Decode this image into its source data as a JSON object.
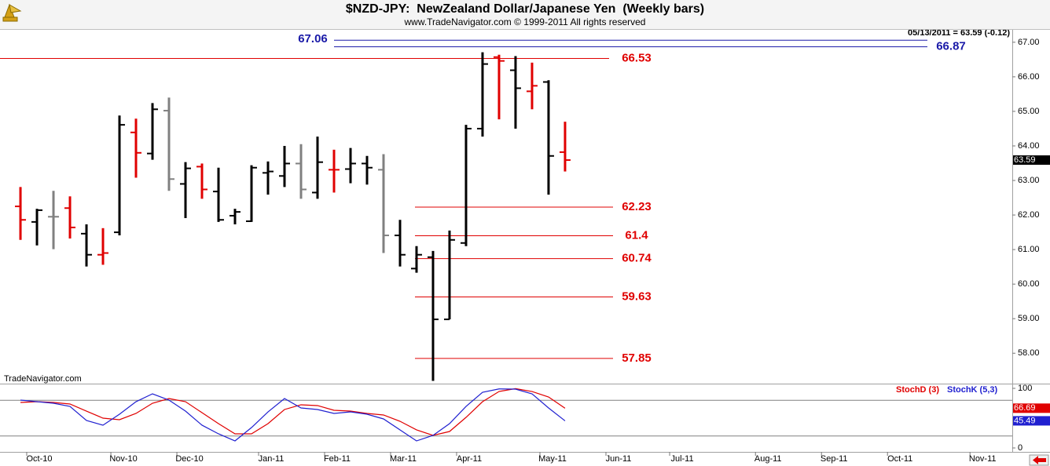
{
  "chart_data": [
    {
      "type": "ohlc",
      "title": "$NZD-JPY:  NewZealand Dollar/Japanese Yen  (Weekly bars)",
      "subtitle": "www.TradeNavigator.com © 1999-2011 All rights reserved",
      "status": "05/13/2011 = 63.59 (-0.12)",
      "watermark": "TradeNavigator.com",
      "open": [
        62.25,
        61.8,
        61.95,
        62.2,
        61.46,
        60.85,
        61.5,
        64.39,
        63.78,
        65.02,
        62.9,
        63.4,
        62.68,
        61.98,
        61.82,
        63.22,
        63.13,
        63.49,
        62.65,
        63.31,
        63.33,
        63.49,
        63.31,
        61.41,
        60.45,
        60.78,
        58.98,
        61.19,
        64.5,
        66.57,
        66.19,
        65.58,
        65.85,
        63.82
      ],
      "high": [
        62.81,
        62.18,
        62.7,
        62.54,
        61.73,
        61.62,
        64.88,
        64.79,
        65.24,
        65.4,
        63.53,
        63.49,
        63.37,
        62.18,
        63.44,
        63.55,
        64.0,
        64.05,
        64.27,
        63.89,
        63.94,
        63.71,
        63.76,
        61.86,
        61.1,
        60.96,
        61.55,
        64.61,
        66.71,
        66.64,
        66.6,
        66.41,
        65.9,
        64.7
      ],
      "low": [
        61.28,
        61.12,
        61.01,
        61.32,
        60.51,
        60.56,
        61.41,
        63.08,
        63.6,
        62.7,
        61.91,
        62.47,
        61.8,
        61.73,
        61.8,
        62.59,
        62.81,
        62.47,
        62.47,
        62.65,
        62.92,
        62.88,
        60.9,
        60.51,
        60.33,
        57.2,
        58.98,
        61.1,
        64.27,
        64.77,
        64.5,
        65.06,
        62.59,
        63.26
      ],
      "close": [
        61.86,
        62.14,
        61.95,
        61.64,
        60.85,
        60.9,
        64.61,
        63.8,
        65.06,
        63.04,
        63.35,
        62.74,
        61.86,
        62.09,
        63.37,
        63.26,
        63.49,
        62.74,
        63.53,
        63.31,
        63.49,
        63.37,
        61.41,
        60.85,
        60.85,
        58.98,
        61.28,
        64.5,
        66.37,
        66.46,
        65.67,
        65.74,
        63.71,
        63.59
      ],
      "colors": [
        "#e00000",
        "#000000",
        "#808080",
        "#e00000",
        "#000000",
        "#e00000",
        "#000000",
        "#e00000",
        "#000000",
        "#808080",
        "#000000",
        "#e00000",
        "#000000",
        "#000000",
        "#000000",
        "#000000",
        "#000000",
        "#808080",
        "#000000",
        "#e00000",
        "#000000",
        "#000000",
        "#808080",
        "#000000",
        "#000000",
        "#000000",
        "#000000",
        "#000000",
        "#000000",
        "#e00000",
        "#000000",
        "#e00000",
        "#000000",
        "#e00000"
      ],
      "xlim": [
        -1.24,
        60.1
      ],
      "xticks": [
        {
          "value": 1.14,
          "label": "Oct-10"
        },
        {
          "value": 6.24,
          "label": "Nov-10"
        },
        {
          "value": 10.24,
          "label": "Dec-10"
        },
        {
          "value": 15.19,
          "label": "Jan-11"
        },
        {
          "value": 19.19,
          "label": "Feb-11"
        },
        {
          "value": 23.19,
          "label": "Mar-11"
        },
        {
          "value": 27.19,
          "label": "Apr-11"
        },
        {
          "value": 32.24,
          "label": "May-11"
        },
        {
          "value": 36.24,
          "label": "Jun-11"
        },
        {
          "value": 40.1,
          "label": "Jul-11"
        },
        {
          "value": 45.3,
          "label": "Aug-11"
        },
        {
          "value": 49.3,
          "label": "Sep-11"
        },
        {
          "value": 53.3,
          "label": "Oct-11"
        },
        {
          "value": 58.3,
          "label": "Nov-11"
        }
      ],
      "ylim": [
        57.12,
        67.36
      ],
      "yticks": [
        {
          "value": 58,
          "label": "58.00"
        },
        {
          "value": 59,
          "label": "59.00"
        },
        {
          "value": 60,
          "label": "60.00"
        },
        {
          "value": 61,
          "label": "61.00"
        },
        {
          "value": 62,
          "label": "62.00"
        },
        {
          "value": 63,
          "label": "63.00"
        },
        {
          "value": 64,
          "label": "64.00"
        },
        {
          "value": 65,
          "label": "65.00"
        },
        {
          "value": 66,
          "label": "66.00"
        },
        {
          "value": 67,
          "label": "67.00"
        }
      ],
      "levels": [
        {
          "value": 67.06,
          "color": "#1a1aa8"
        },
        {
          "value": 66.87,
          "color": "#1a1aa8"
        },
        {
          "value": 66.53,
          "color": "#e00000"
        },
        {
          "value": 62.23,
          "color": "#e00000"
        },
        {
          "value": 61.4,
          "color": "#e00000"
        },
        {
          "value": 60.74,
          "color": "#e00000"
        },
        {
          "value": 59.63,
          "color": "#e00000"
        },
        {
          "value": 57.85,
          "color": "#e00000"
        }
      ]
    },
    {
      "type": "line",
      "series": [
        {
          "name": "StochD (3)",
          "color": "#e00000",
          "values": [
            76.3,
            77.6,
            76.3,
            73.7,
            61.8,
            50.0,
            47.4,
            57.9,
            75.0,
            82.9,
            77.6,
            59.2,
            40.8,
            23.7,
            23.7,
            40.8,
            64.5,
            72.4,
            71.1,
            63.2,
            61.8,
            57.9,
            55.3,
            44.7,
            30.3,
            21.1,
            27.6,
            51.3,
            77.6,
            94.7,
            99.5,
            94.7,
            85.5,
            66.69
          ]
        },
        {
          "name": "StochK (5,3)",
          "color": "#2020d0",
          "values": [
            80.3,
            77.6,
            75.0,
            69.7,
            46.1,
            38.2,
            56.6,
            77.6,
            90.8,
            80.3,
            61.8,
            38.2,
            23.7,
            11.8,
            34.2,
            60.5,
            82.9,
            67.1,
            64.5,
            57.9,
            60.5,
            56.6,
            48.7,
            30.3,
            11.8,
            21.1,
            40.8,
            69.7,
            93.4,
            99.0,
            98.7,
            90.8,
            67.1,
            45.49
          ]
        }
      ],
      "ylim": [
        -6.6,
        106.6
      ],
      "yticks": [
        0,
        100
      ],
      "levels": [
        80,
        20
      ]
    }
  ]
}
